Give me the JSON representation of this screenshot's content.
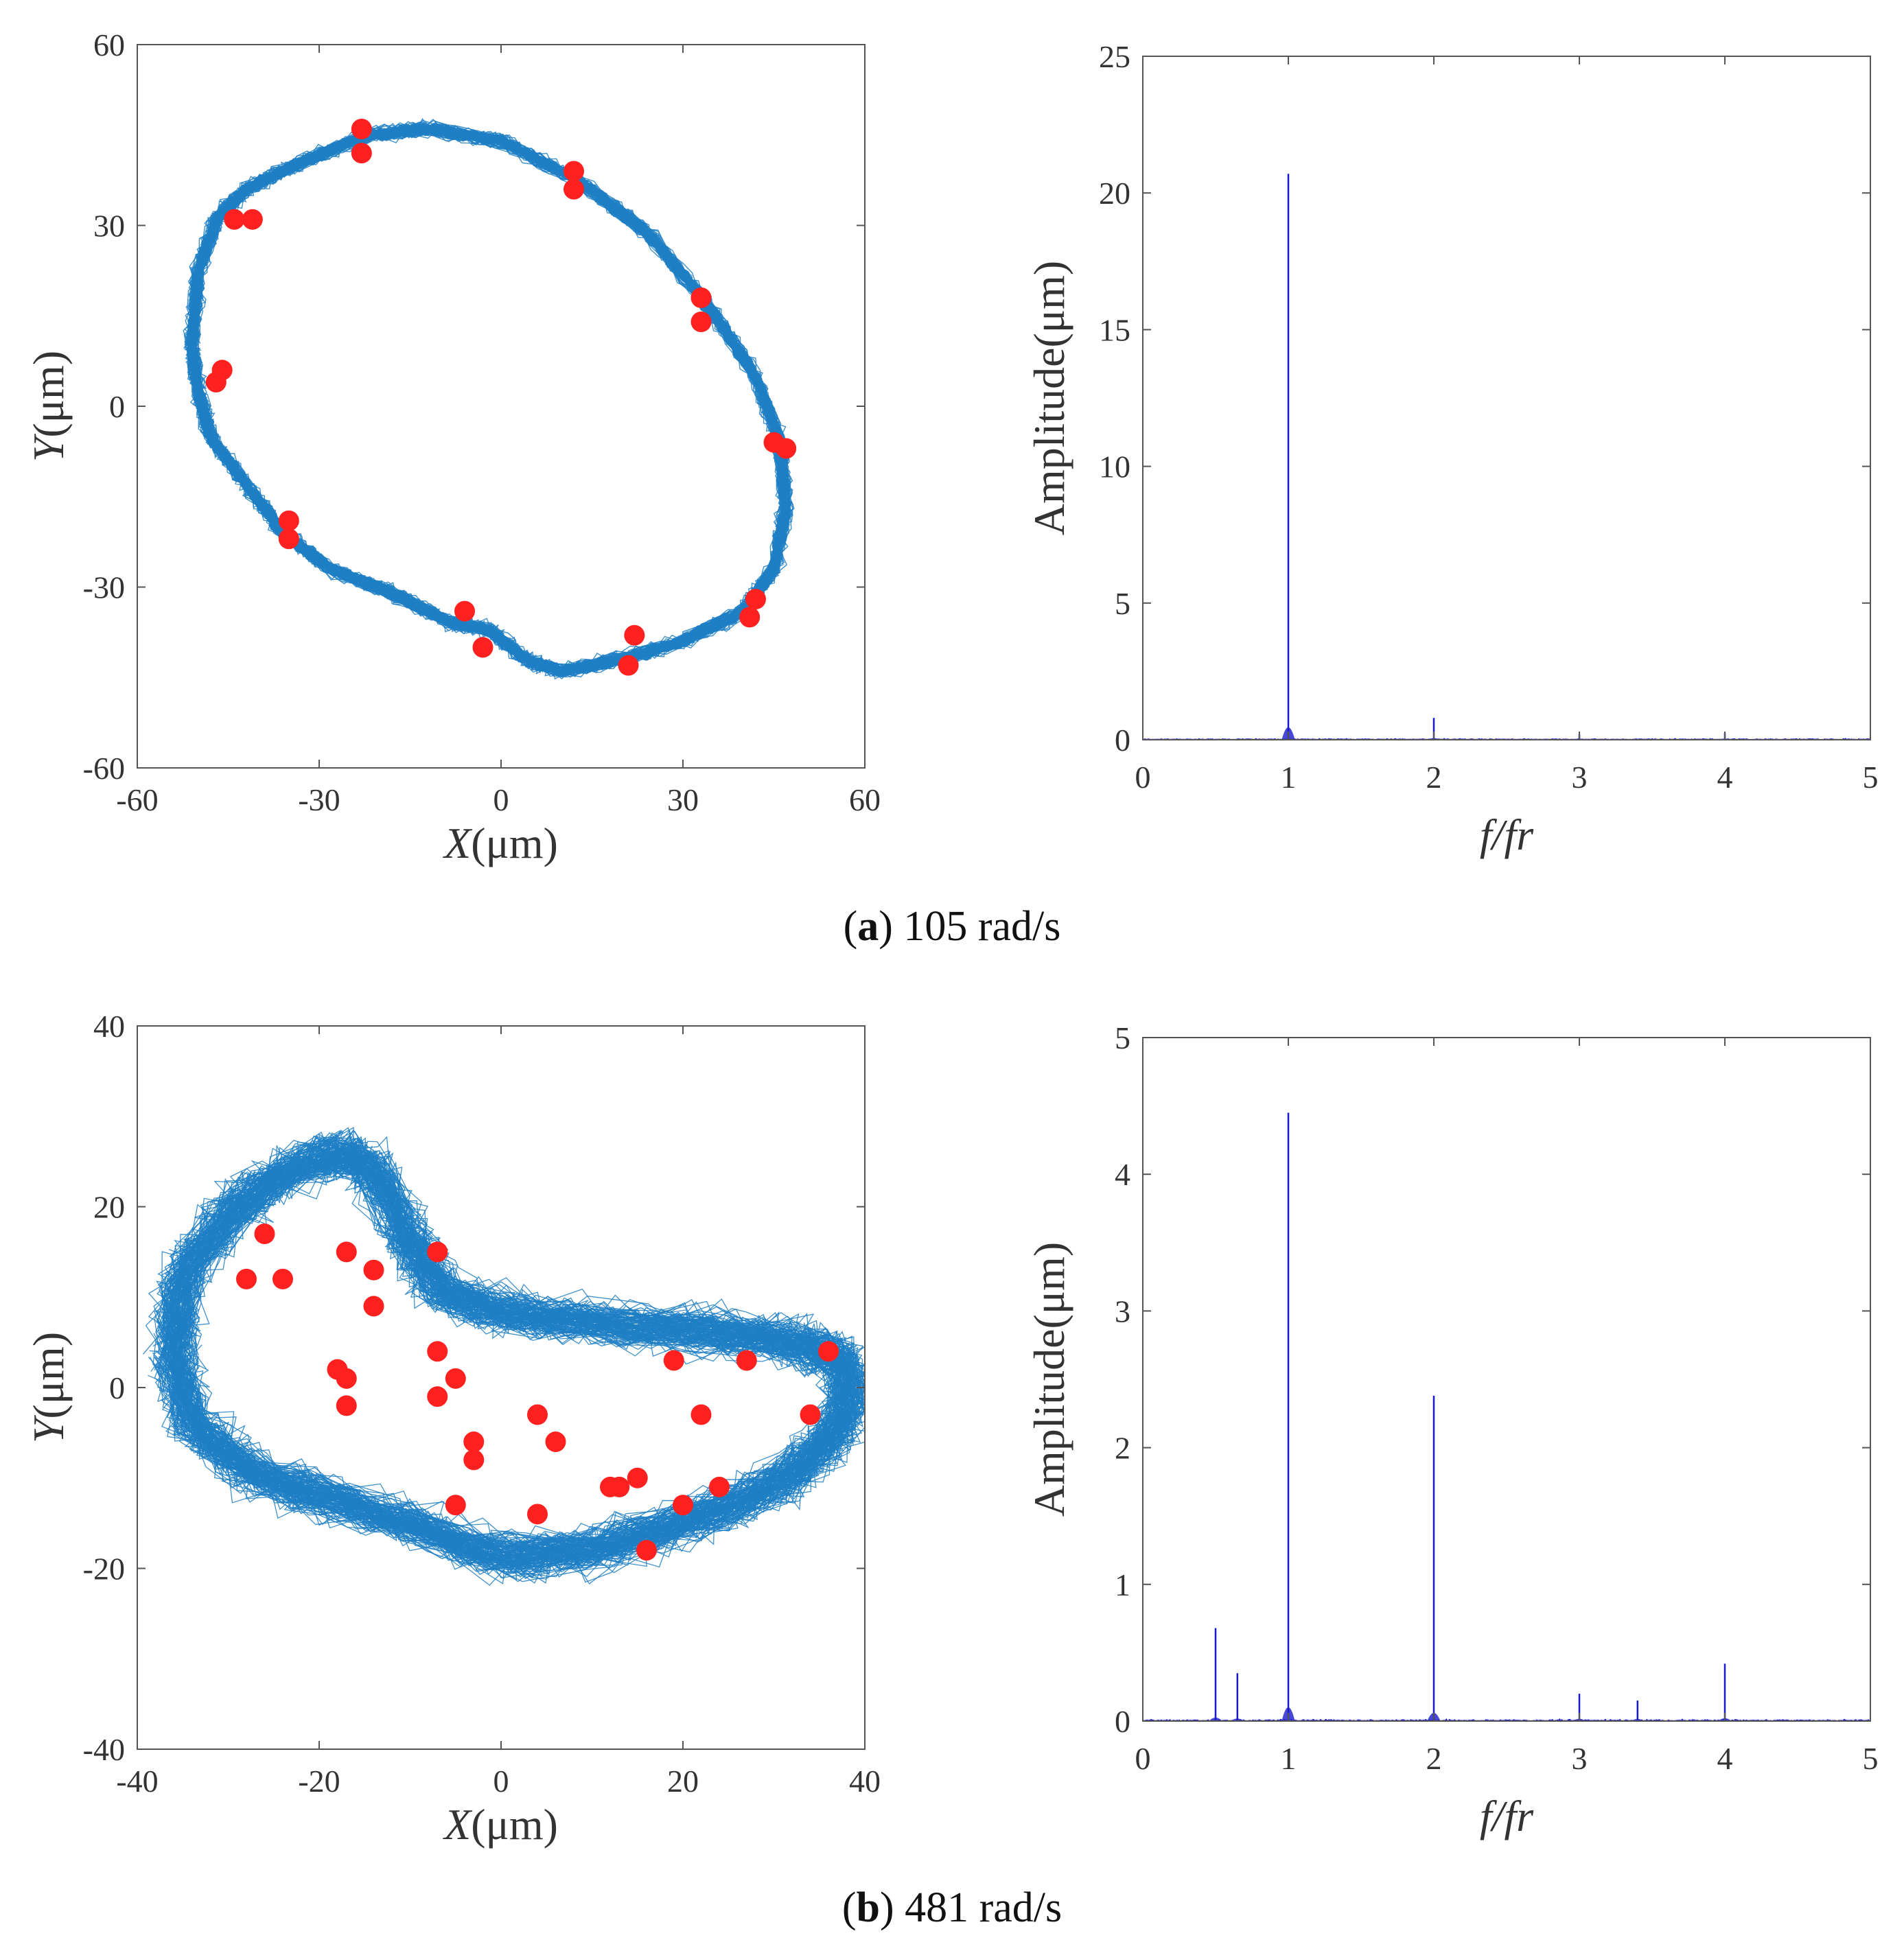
{
  "figure": {
    "panel_a": {
      "letter": "a",
      "text": "105 rad/s"
    },
    "panel_b": {
      "letter": "b",
      "text": "481 rad/s"
    }
  },
  "colors": {
    "orbit": "#1e7fc4",
    "poincare": "#ff2020",
    "spectrum": "#1a1acc",
    "axis": "#555555"
  },
  "chart_data": [
    {
      "id": "a-orbit",
      "type": "scatter",
      "title": "",
      "xlabel_italic": "X",
      "xlabel_unit": "(μm)",
      "ylabel_italic": "Y",
      "ylabel_unit": "(μm)",
      "xlim": [
        -60,
        60
      ],
      "ylim": [
        -60,
        60
      ],
      "xticks": [
        "-60",
        "-30",
        "0",
        "30",
        "60"
      ],
      "yticks": [
        "-60",
        "-30",
        "0",
        "30",
        "60"
      ],
      "xtick_values": [
        -60,
        -30,
        0,
        30,
        60
      ],
      "ytick_values": [
        -60,
        -30,
        0,
        30,
        60
      ],
      "orbit_shape": [
        [
          -51,
          10
        ],
        [
          -50,
          22
        ],
        [
          -47,
          31
        ],
        [
          -42,
          36
        ],
        [
          -34,
          40
        ],
        [
          -22,
          45
        ],
        [
          -12,
          46
        ],
        [
          0,
          44
        ],
        [
          12,
          38
        ],
        [
          24,
          29
        ],
        [
          34,
          17
        ],
        [
          42,
          5
        ],
        [
          46,
          -6
        ],
        [
          47,
          -17
        ],
        [
          45,
          -27
        ],
        [
          40,
          -34
        ],
        [
          30,
          -39
        ],
        [
          20,
          -42
        ],
        [
          10,
          -44
        ],
        [
          4,
          -42
        ],
        [
          -2,
          -37
        ],
        [
          -8,
          -36
        ],
        [
          -18,
          -31
        ],
        [
          -28,
          -27
        ],
        [
          -36,
          -21
        ],
        [
          -42,
          -13
        ],
        [
          -48,
          -5
        ],
        [
          -50,
          3
        ]
      ],
      "poincare_points": [
        [
          -23,
          46
        ],
        [
          -23,
          42
        ],
        [
          12,
          39
        ],
        [
          12,
          36
        ],
        [
          -44,
          31
        ],
        [
          -41,
          31
        ],
        [
          33,
          18
        ],
        [
          33,
          14
        ],
        [
          -46,
          6
        ],
        [
          -47,
          4
        ],
        [
          45,
          -6
        ],
        [
          47,
          -7
        ],
        [
          -35,
          -19
        ],
        [
          -35,
          -22
        ],
        [
          42,
          -32
        ],
        [
          41,
          -35
        ],
        [
          -6,
          -34
        ],
        [
          -3,
          -40
        ],
        [
          22,
          -38
        ],
        [
          21,
          -43
        ]
      ]
    },
    {
      "id": "a-spectrum",
      "type": "line",
      "title": "",
      "xlabel": "f/fr",
      "ylabel": "Amplitude(μm)",
      "xlim": [
        0,
        5
      ],
      "ylim": [
        0,
        25
      ],
      "xticks": [
        "0",
        "1",
        "2",
        "3",
        "4",
        "5"
      ],
      "yticks": [
        "0",
        "5",
        "10",
        "15",
        "20",
        "25"
      ],
      "xtick_values": [
        0,
        1,
        2,
        3,
        4,
        5
      ],
      "ytick_values": [
        0,
        5,
        10,
        15,
        20,
        25
      ],
      "peaks": [
        {
          "x": 1.0,
          "y": 20.7
        },
        {
          "x": 2.0,
          "y": 0.8
        },
        {
          "x": 3.0,
          "y": 0.2
        },
        {
          "x": 4.0,
          "y": 0.25
        }
      ]
    },
    {
      "id": "b-orbit",
      "type": "scatter",
      "title": "",
      "xlabel_italic": "X",
      "xlabel_unit": "(μm)",
      "ylabel_italic": "Y",
      "ylabel_unit": "(μm)",
      "xlim": [
        -40,
        40
      ],
      "ylim": [
        -40,
        40
      ],
      "xticks": [
        "-40",
        "-20",
        "0",
        "20",
        "40"
      ],
      "yticks": [
        "-40",
        "-20",
        "0",
        "20",
        "40"
      ],
      "xtick_values": [
        -40,
        -20,
        0,
        20,
        40
      ],
      "ytick_values": [
        -40,
        -20,
        0,
        20,
        40
      ],
      "orbit_shape": [
        [
          -36,
          4
        ],
        [
          -35,
          12
        ],
        [
          -30,
          19
        ],
        [
          -25,
          23
        ],
        [
          -18,
          26
        ],
        [
          -14,
          24
        ],
        [
          -10,
          16
        ],
        [
          -6,
          10
        ],
        [
          2,
          8
        ],
        [
          12,
          7
        ],
        [
          24,
          6
        ],
        [
          32,
          5
        ],
        [
          38,
          3
        ],
        [
          38,
          -3
        ],
        [
          34,
          -8
        ],
        [
          28,
          -12
        ],
        [
          20,
          -15
        ],
        [
          10,
          -18
        ],
        [
          0,
          -19
        ],
        [
          -10,
          -15
        ],
        [
          -20,
          -12
        ],
        [
          -28,
          -9
        ],
        [
          -34,
          -4
        ]
      ],
      "poincare_points": [
        [
          -26,
          17
        ],
        [
          -28,
          12
        ],
        [
          -24,
          12
        ],
        [
          -17,
          15
        ],
        [
          -14,
          13
        ],
        [
          -14,
          9
        ],
        [
          -7,
          15
        ],
        [
          -7,
          4
        ],
        [
          -5,
          1
        ],
        [
          -18,
          2
        ],
        [
          -17,
          1
        ],
        [
          -17,
          -2
        ],
        [
          -7,
          -1
        ],
        [
          -3,
          -6
        ],
        [
          -3,
          -8
        ],
        [
          -5,
          -13
        ],
        [
          4,
          -3
        ],
        [
          6,
          -6
        ],
        [
          4,
          -14
        ],
        [
          12,
          -11
        ],
        [
          13,
          -11
        ],
        [
          15,
          -10
        ],
        [
          16,
          -18
        ],
        [
          19,
          3
        ],
        [
          22,
          -3
        ],
        [
          20,
          -13
        ],
        [
          24,
          -11
        ],
        [
          27,
          3
        ],
        [
          34,
          -3
        ],
        [
          36,
          4
        ]
      ]
    },
    {
      "id": "b-spectrum",
      "type": "line",
      "title": "",
      "xlabel": "f/fr",
      "ylabel": "Amplitude(μm)",
      "xlim": [
        0,
        5
      ],
      "ylim": [
        0,
        5
      ],
      "xticks": [
        "0",
        "1",
        "2",
        "3",
        "4",
        "5"
      ],
      "yticks": [
        "0",
        "1",
        "2",
        "3",
        "4",
        "5"
      ],
      "xtick_values": [
        0,
        1,
        2,
        3,
        4,
        5
      ],
      "ytick_values": [
        0,
        1,
        2,
        3,
        4,
        5
      ],
      "peaks": [
        {
          "x": 0.5,
          "y": 0.68
        },
        {
          "x": 0.65,
          "y": 0.35
        },
        {
          "x": 1.0,
          "y": 4.45
        },
        {
          "x": 2.0,
          "y": 2.38
        },
        {
          "x": 3.0,
          "y": 0.2
        },
        {
          "x": 3.4,
          "y": 0.15
        },
        {
          "x": 4.0,
          "y": 0.42
        }
      ]
    }
  ]
}
